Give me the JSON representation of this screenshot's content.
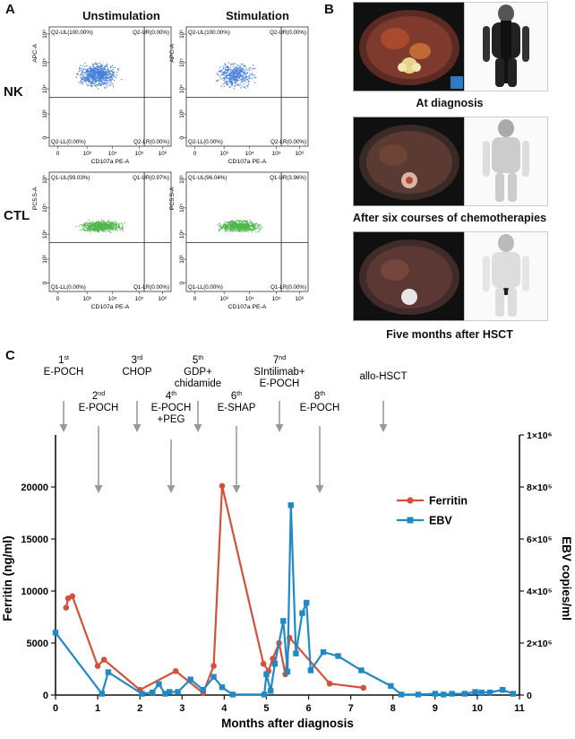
{
  "panels": {
    "a": "A",
    "b": "B",
    "c": "C"
  },
  "flow": {
    "col_titles": [
      "Unstimulation",
      "Stimulation"
    ],
    "row_labels": [
      "NK",
      "CTL"
    ],
    "plots": [
      {
        "ylabel": "APC-A",
        "xlabel": "CD107a PE-A",
        "q": [
          "Q2-UL(100.00%)",
          "Q2-UR(0.00%)",
          "Q2-LL(0.00%)",
          "Q2-LR(0.00%)"
        ]
      },
      {
        "ylabel": "APC-A",
        "xlabel": "CD107a PE-A",
        "q": [
          "Q2-UL(100.00%)",
          "Q2-UR(0.00%)",
          "Q2-LL(0.00%)",
          "Q2-LR(0.00%)"
        ]
      },
      {
        "ylabel": "PC5.5-A",
        "xlabel": "CD107a PE-A",
        "q": [
          "Q1-UL(99.03%)",
          "Q1-UR(0.97%)",
          "Q1-LL(0.00%)",
          "Q1-LR(0.00%)"
        ]
      },
      {
        "ylabel": "PC5.5-A",
        "xlabel": "CD107a PE-A",
        "q": [
          "Q1-UL(96.04%)",
          "Q1-UR(3.96%)",
          "Q1-LL(0.00%)",
          "Q1-LR(0.00%)"
        ]
      }
    ],
    "xticks": [
      "0",
      "10³",
      "10⁴",
      "10⁵",
      "10⁶"
    ],
    "yticks": [
      "10⁶",
      "10⁵",
      "10⁴",
      "10³",
      "0"
    ],
    "colors": {
      "nk": "#2f6fd6",
      "ctl": "#3fae3a"
    }
  },
  "imaging": {
    "captions": [
      "At diagnosis",
      "After six courses of chemotherapies",
      "Five months after HSCT"
    ]
  },
  "treatments": {
    "top": [
      {
        "sup": "1st",
        "text": "E-POCH"
      },
      {
        "sup": "3rd",
        "text": "CHOP"
      },
      {
        "sup": "5th",
        "text": "GDP+ chidamide"
      },
      {
        "sup": "7nd",
        "text": "SIntilimab+ E-POCH"
      },
      {
        "sup": "",
        "text": "allo-HSCT"
      }
    ],
    "bottom": [
      {
        "sup": "2nd",
        "text": "E-POCH"
      },
      {
        "sup": "4th",
        "text": "E-POCH +PEG"
      },
      {
        "sup": "6th",
        "text": "E-SHAP"
      },
      {
        "sup": "8th",
        "text": "E-POCH"
      }
    ]
  },
  "chart_data": {
    "type": "line",
    "xlabel": "Months after diagnosis",
    "ylabel_left": "Ferritin (ng/ml)",
    "ylabel_right": "EBV copies/ml",
    "xlim": [
      0,
      11
    ],
    "ylim_left": [
      0,
      25000
    ],
    "ylim_right": [
      0,
      1000000
    ],
    "xticks": [
      "0",
      "1",
      "2",
      "3",
      "4",
      "5",
      "6",
      "7",
      "8",
      "9",
      "10",
      "11"
    ],
    "yticks_left": [
      "0",
      "5000",
      "10000",
      "15000",
      "20000"
    ],
    "yticks_right": [
      "0",
      "2×10⁵",
      "4×10⁵",
      "6×10⁵",
      "8×10⁵",
      "1×10⁶"
    ],
    "series": [
      {
        "name": "Ferritin",
        "color": "#d4503a",
        "marker": "circle",
        "axis": "left",
        "x": [
          0.25,
          0.3,
          0.4,
          1.0,
          1.15,
          2.0,
          2.85,
          3.5,
          3.75,
          3.95,
          4.93,
          5.05,
          5.15,
          5.3,
          5.45,
          5.55,
          6.5,
          7.3
        ],
        "y": [
          8400,
          9300,
          9500,
          2800,
          3400,
          500,
          2300,
          200,
          2800,
          20100,
          3000,
          2300,
          3500,
          5000,
          2000,
          5500,
          1100,
          700
        ]
      },
      {
        "name": "EBV",
        "color": "#1f8ac6",
        "marker": "square",
        "axis": "right",
        "x": [
          0,
          1.1,
          1.25,
          2.05,
          2.3,
          2.45,
          2.6,
          2.7,
          2.9,
          3.2,
          3.5,
          3.75,
          3.95,
          4.2,
          4.95,
          5.0,
          5.1,
          5.2,
          5.4,
          5.5,
          5.58,
          5.7,
          5.85,
          5.95,
          6.05,
          6.35,
          6.7,
          7.25,
          7.95,
          8.2,
          8.6,
          9.0,
          9.2,
          9.4,
          9.7,
          9.95,
          10.1,
          10.3,
          10.6,
          10.85
        ],
        "y": [
          240000,
          5000,
          88000,
          5000,
          10000,
          42000,
          5000,
          12000,
          12000,
          60000,
          20000,
          70000,
          30000,
          2000,
          2000,
          80000,
          16000,
          120000,
          285000,
          90000,
          730000,
          160000,
          315000,
          355000,
          95000,
          165000,
          150000,
          95000,
          35000,
          2000,
          2000,
          5000,
          2000,
          5000,
          5000,
          12000,
          10000,
          10000,
          20000,
          5000
        ]
      }
    ],
    "legend": "center-right"
  }
}
